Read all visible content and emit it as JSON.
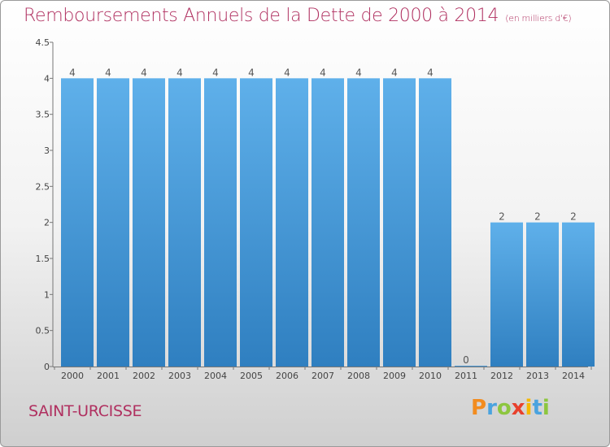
{
  "title": "Remboursements Annuels de la Dette de 2000 à 2014",
  "subtitle": "(en milliers d'€)",
  "city": "SAINT-URCISSE",
  "logo": {
    "letters": [
      "P",
      "r",
      "o",
      "x",
      "i",
      "t",
      "i"
    ],
    "colors": [
      "#f28c1f",
      "#4aa3df",
      "#8dc63f",
      "#e8412c",
      "#f5b800",
      "#4aa3df",
      "#8dc63f"
    ]
  },
  "chart_data": {
    "type": "bar",
    "categories": [
      "2000",
      "2001",
      "2002",
      "2003",
      "2004",
      "2005",
      "2006",
      "2007",
      "2008",
      "2009",
      "2010",
      "2011",
      "2012",
      "2013",
      "2014"
    ],
    "values": [
      4,
      4,
      4,
      4,
      4,
      4,
      4,
      4,
      4,
      4,
      4,
      0,
      2,
      2,
      2
    ],
    "data_labels": [
      "4",
      "4",
      "4",
      "4",
      "4",
      "4",
      "4",
      "4",
      "4",
      "4",
      "4",
      "0",
      "2",
      "2",
      "2"
    ],
    "yticks": [
      {
        "value": 0,
        "label": "0"
      },
      {
        "value": 0.5,
        "label": "0.5"
      },
      {
        "value": 1,
        "label": "1"
      },
      {
        "value": 1.5,
        "label": "1.5"
      },
      {
        "value": 2,
        "label": "2"
      },
      {
        "value": 2.5,
        "label": "2.5"
      },
      {
        "value": 3,
        "label": "3"
      },
      {
        "value": 3.5,
        "label": "3.5"
      },
      {
        "value": 4,
        "label": "4"
      },
      {
        "value": 4.5,
        "label": "4.5"
      }
    ],
    "ylim": [
      0,
      4.5
    ],
    "bar_color_top": "#5fb0ea",
    "bar_color_bottom": "#2f7fc0",
    "grid": false,
    "legend": "none"
  }
}
